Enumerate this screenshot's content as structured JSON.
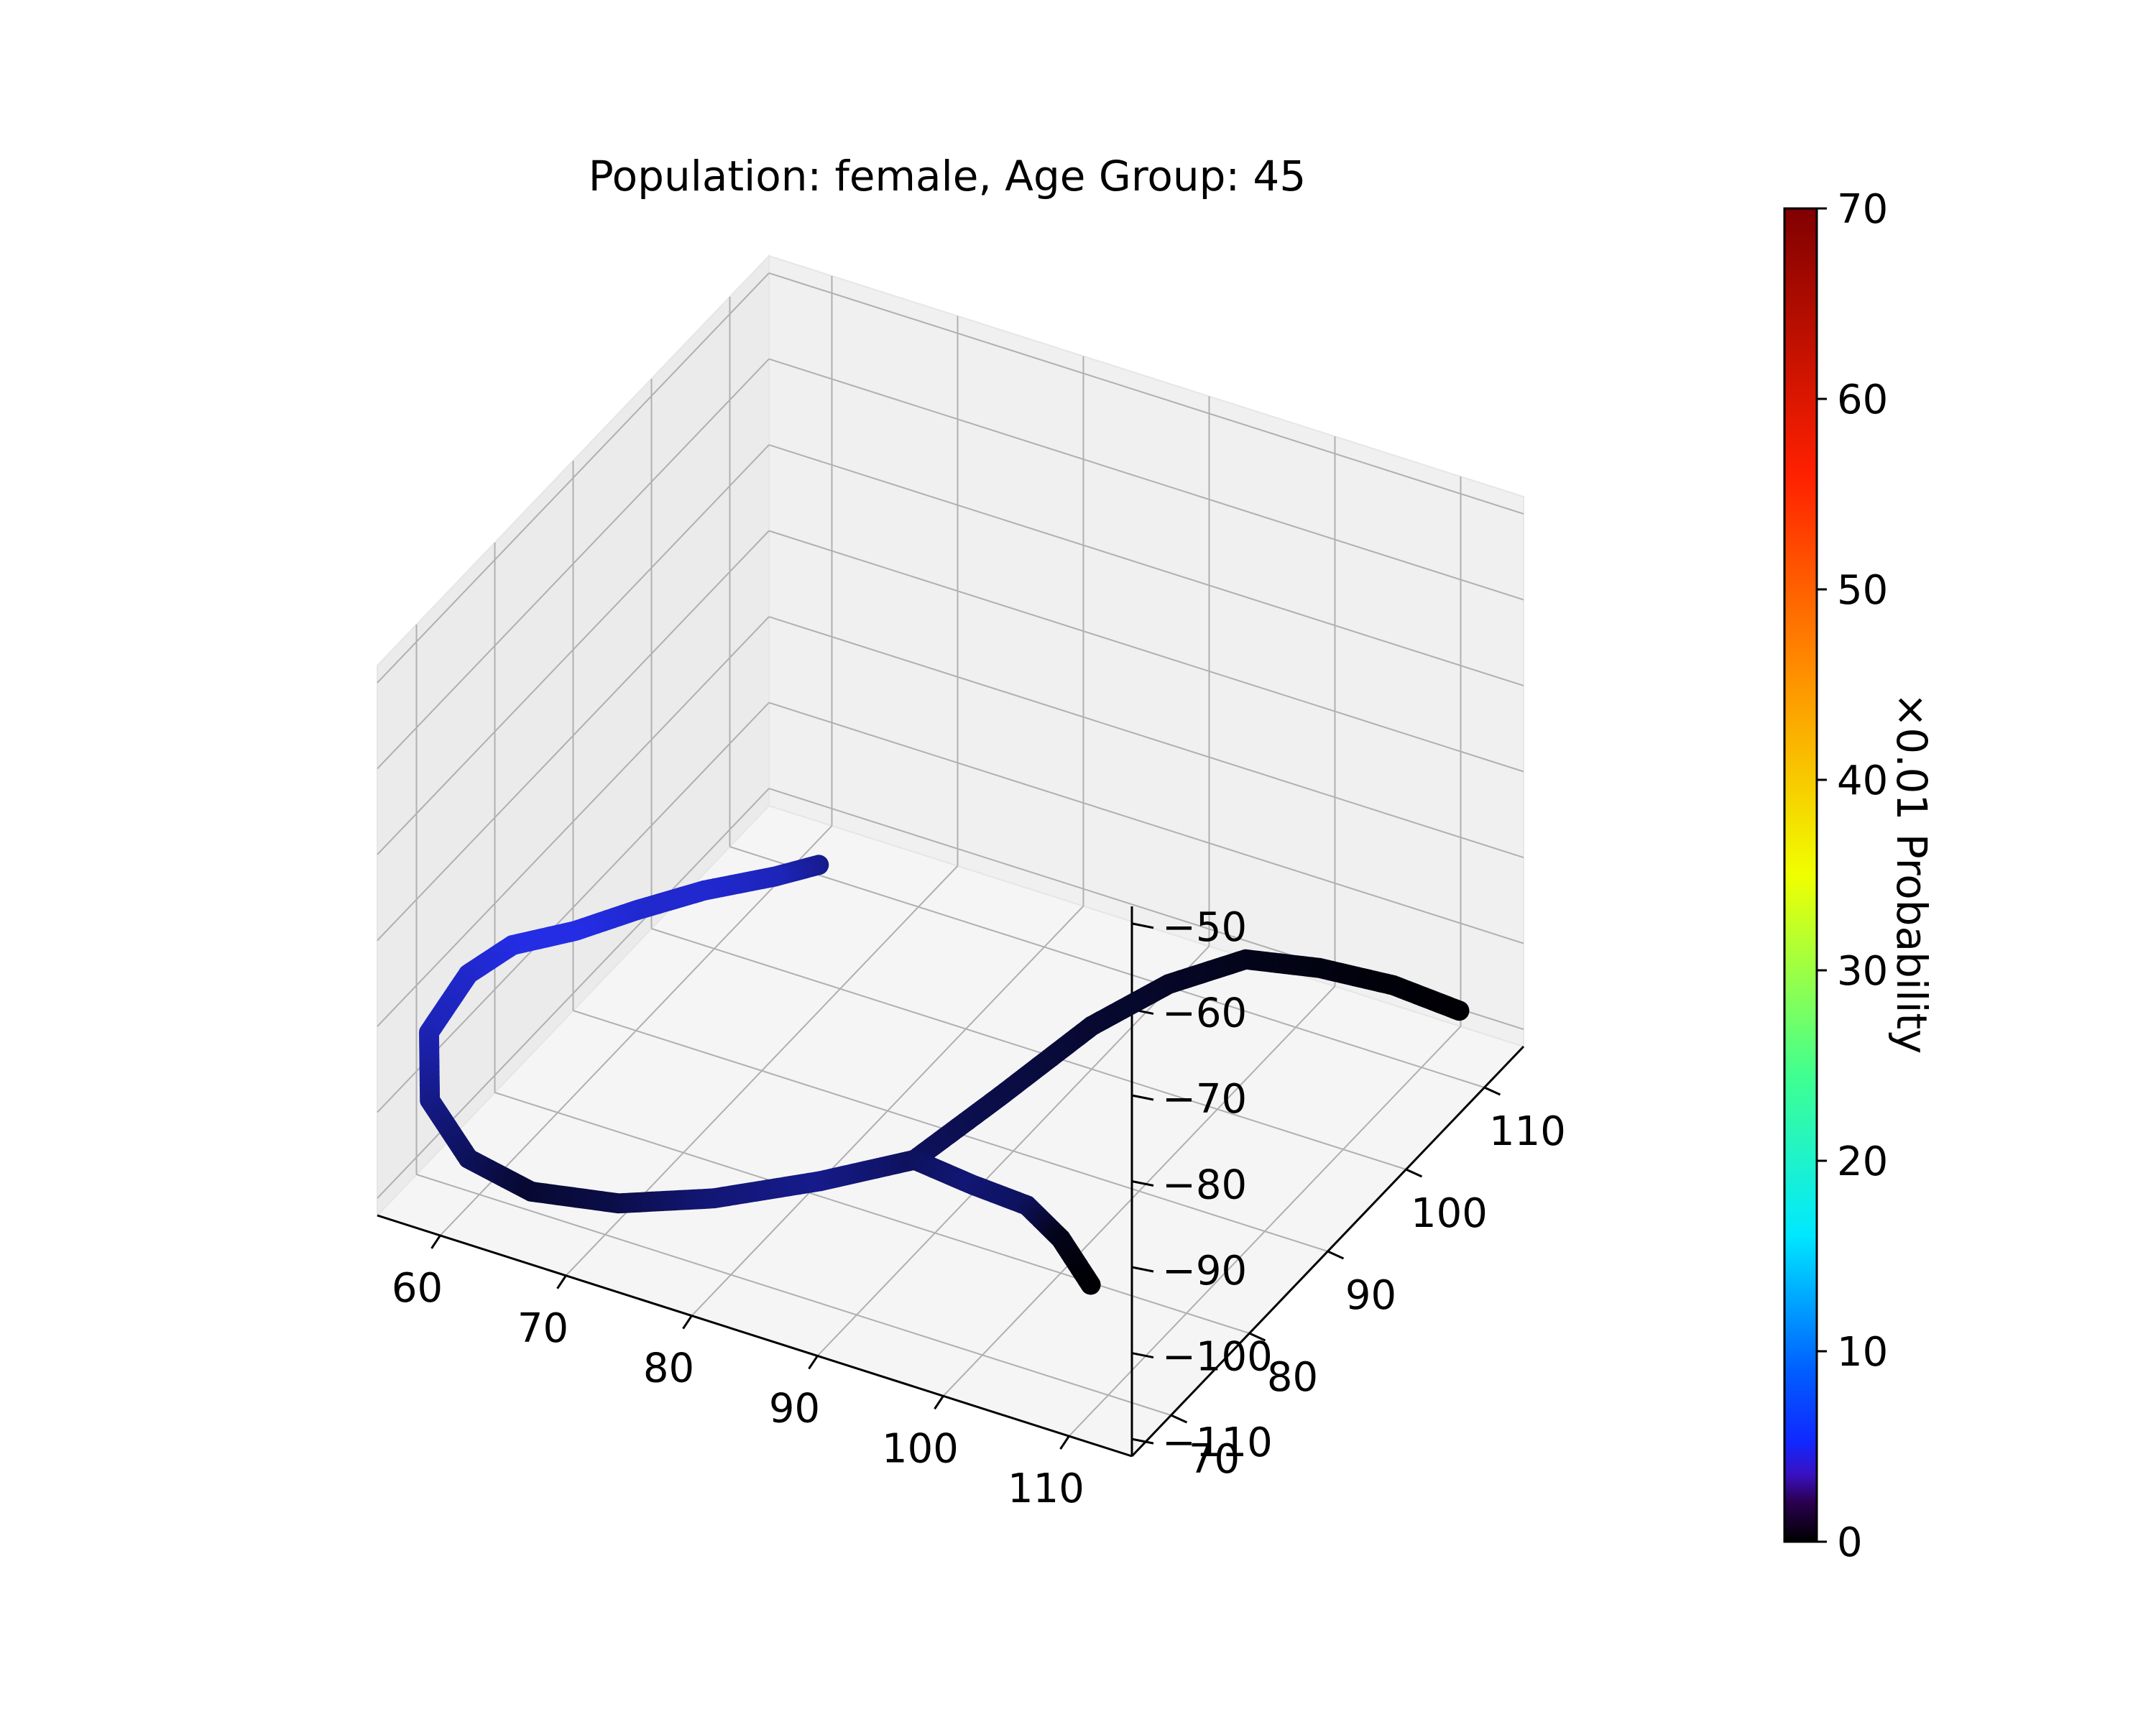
{
  "chart_data": {
    "type": "scatter",
    "projection": "3d",
    "title": "Population: female, Age Group: 45",
    "xlabel": "",
    "ylabel": "",
    "zlabel": "",
    "x_ticks": [
      60,
      70,
      80,
      90,
      100,
      110
    ],
    "y_ticks": [
      70,
      80,
      90,
      100,
      110
    ],
    "z_ticks": [
      -50,
      -60,
      -70,
      -80,
      -90,
      -100,
      -110
    ],
    "x_tick_labels": [
      "60",
      "70",
      "80",
      "90",
      "100",
      "110"
    ],
    "y_tick_labels": [
      "70",
      "80",
      "90",
      "100",
      "110"
    ],
    "z_tick_labels": [
      "−50",
      "−60",
      "−70",
      "−80",
      "−90",
      "−100",
      "−110"
    ],
    "xlim": [
      55,
      115
    ],
    "ylim": [
      65,
      115
    ],
    "zlim": [
      -112,
      -48
    ],
    "grid": true,
    "colormap": "jet",
    "colorbar": {
      "label": "×0.01 Probability",
      "range": [
        0,
        70
      ],
      "ticks": [
        0,
        10,
        20,
        30,
        40,
        50,
        60,
        70
      ],
      "tick_labels": [
        "0",
        "10",
        "20",
        "30",
        "40",
        "50",
        "60",
        "70"
      ]
    },
    "colors": {
      "pane": "#f2f2f2",
      "grid": "#b0b0b0",
      "axis": "#000000",
      "blue_segment": "#1a33ff",
      "purple_segment": "#4b12c8",
      "black_segment": "#050505"
    },
    "trajectories": [
      {
        "branch": "shared trunk",
        "points": [
          {
            "x": 84.5,
            "y": 74.0,
            "z": -66.0,
            "p": 3.0
          },
          {
            "x": 81.0,
            "y": 74.0,
            "z": -69.0,
            "p": 4.0
          },
          {
            "x": 76.0,
            "y": 73.0,
            "z": -72.0,
            "p": 4.5
          },
          {
            "x": 71.5,
            "y": 71.5,
            "z": -75.0,
            "p": 4.5
          },
          {
            "x": 67.0,
            "y": 71.0,
            "z": -79.0,
            "p": 5.0
          },
          {
            "x": 62.0,
            "y": 71.0,
            "z": -83.0,
            "p": 5.0
          },
          {
            "x": 58.5,
            "y": 71.0,
            "z": -88.0,
            "p": 4.5
          },
          {
            "x": 56.0,
            "y": 70.0,
            "z": -95.0,
            "p": 4.0
          },
          {
            "x": 57.0,
            "y": 68.5,
            "z": -101.0,
            "p": 3.0
          },
          {
            "x": 61.0,
            "y": 67.0,
            "z": -104.5,
            "p": 2.0
          },
          {
            "x": 66.0,
            "y": 67.0,
            "z": -106.0,
            "p": 1.0
          },
          {
            "x": 72.0,
            "y": 68.5,
            "z": -106.0,
            "p": 1.5
          },
          {
            "x": 78.0,
            "y": 71.0,
            "z": -105.0,
            "p": 2.5
          },
          {
            "x": 84.0,
            "y": 75.0,
            "z": -104.0,
            "p": 3.0
          },
          {
            "x": 89.0,
            "y": 79.0,
            "z": -103.0,
            "p": 2.0
          }
        ]
      },
      {
        "branch": "upper branch",
        "points": [
          {
            "x": 89.0,
            "y": 79.0,
            "z": -103.0,
            "p": 2.0
          },
          {
            "x": 92.0,
            "y": 85.0,
            "z": -100.0,
            "p": 1.5
          },
          {
            "x": 95.0,
            "y": 92.0,
            "z": -97.0,
            "p": 1.0
          },
          {
            "x": 98.0,
            "y": 97.0,
            "z": -95.5,
            "p": 0.8
          },
          {
            "x": 101.0,
            "y": 102.0,
            "z": -96.0,
            "p": 0.5
          },
          {
            "x": 105.0,
            "y": 105.0,
            "z": -98.0,
            "p": 0.3
          },
          {
            "x": 109.0,
            "y": 108.0,
            "z": -101.0,
            "p": 0.1
          },
          {
            "x": 113.0,
            "y": 110.0,
            "z": -104.0,
            "p": 0.0
          }
        ]
      },
      {
        "branch": "lower branch",
        "points": [
          {
            "x": 89.0,
            "y": 79.0,
            "z": -103.0,
            "p": 2.0
          },
          {
            "x": 93.0,
            "y": 80.0,
            "z": -105.0,
            "p": 2.5
          },
          {
            "x": 97.0,
            "y": 80.5,
            "z": -106.0,
            "p": 2.0
          },
          {
            "x": 100.0,
            "y": 80.0,
            "z": -108.0,
            "p": 0.5
          },
          {
            "x": 103.0,
            "y": 79.0,
            "z": -111.0,
            "p": 0.0
          }
        ]
      }
    ]
  }
}
